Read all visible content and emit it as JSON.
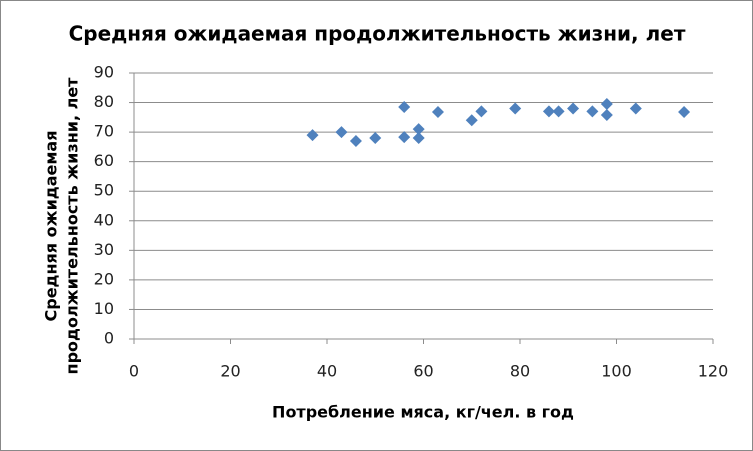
{
  "chart_data": {
    "type": "scatter",
    "title": "Средняя ожидаемая продолжительность жизни, лет",
    "xlabel": "Потребление мяса, кг/чел. в год",
    "ylabel": [
      "Средняя ожидаемая",
      "продолжительность жизни, лет"
    ],
    "x": [
      37,
      43,
      46,
      50,
      56,
      56,
      59,
      59,
      63,
      70,
      72,
      79,
      86,
      88,
      91,
      95,
      98,
      98,
      104,
      114
    ],
    "values": [
      69,
      70,
      67,
      68,
      78.5,
      68.3,
      71,
      68,
      76.8,
      74,
      77,
      78,
      77,
      77,
      78,
      77,
      79.5,
      75.8,
      78,
      76.8
    ],
    "color": "#4f81bd",
    "xlim": [
      0,
      120
    ],
    "xticks": [
      0,
      20,
      40,
      60,
      80,
      100,
      120
    ],
    "ylim": [
      0,
      90
    ],
    "yticks": [
      0,
      10,
      20,
      30,
      40,
      50,
      60,
      70,
      80,
      90
    ],
    "grid": true
  }
}
